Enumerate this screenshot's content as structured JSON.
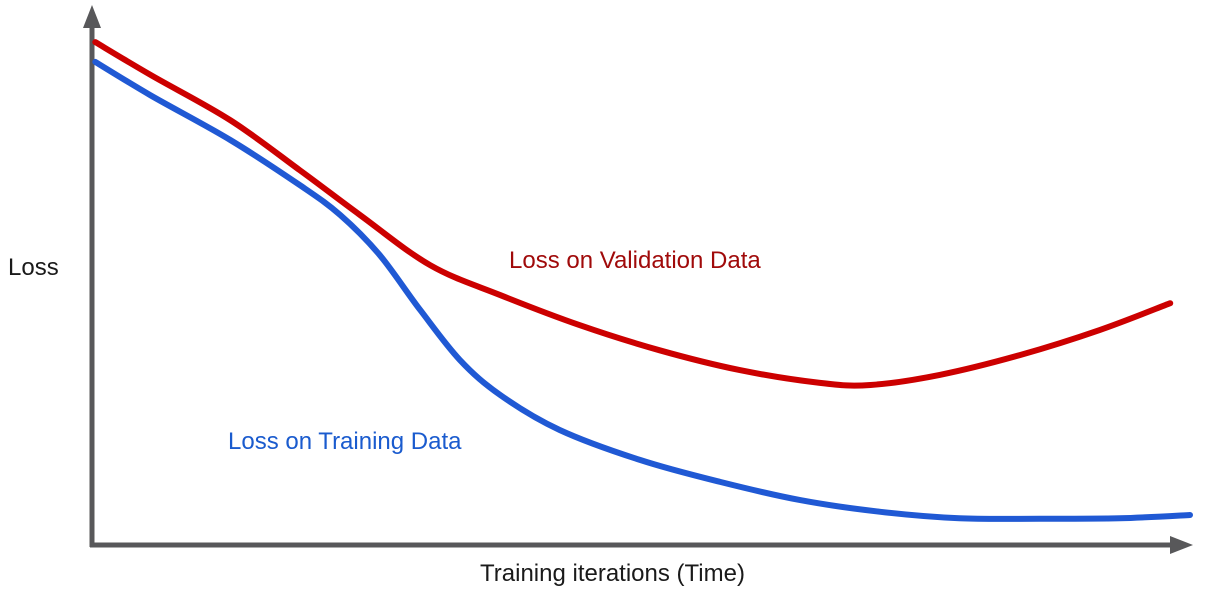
{
  "chart_data": {
    "type": "line",
    "title": "",
    "xlabel": "Training iterations (Time)",
    "ylabel": "Loss",
    "x_range": [
      0,
      100
    ],
    "y_range": [
      0,
      100
    ],
    "grid": false,
    "tick_labels": "none",
    "axes_arrows": true,
    "legend_position": "inline-annotations",
    "axis_color": "#58585a",
    "text_color": "#1a1a1a",
    "series": [
      {
        "name": "Loss on Validation Data",
        "color": "#cc0000",
        "label_color": "#a00a0a",
        "points": [
          [
            0.3,
            94.0
          ],
          [
            5.3,
            87.9
          ],
          [
            12.6,
            79.4
          ],
          [
            18.9,
            70.1
          ],
          [
            24.4,
            61.7
          ],
          [
            30.8,
            52.3
          ],
          [
            37.2,
            46.7
          ],
          [
            44.4,
            41.1
          ],
          [
            51.7,
            36.4
          ],
          [
            59.0,
            32.7
          ],
          [
            66.3,
            30.3
          ],
          [
            70.9,
            29.9
          ],
          [
            77.2,
            31.8
          ],
          [
            84.5,
            35.5
          ],
          [
            91.8,
            40.2
          ],
          [
            98.2,
            45.2
          ]
        ]
      },
      {
        "name": "Loss on Training Data",
        "color": "#2059d4",
        "label_color": "#1a5bce",
        "points": [
          [
            0.3,
            90.3
          ],
          [
            5.3,
            84.1
          ],
          [
            12.6,
            75.7
          ],
          [
            18.9,
            67.3
          ],
          [
            22.6,
            61.7
          ],
          [
            26.2,
            54.2
          ],
          [
            29.9,
            43.9
          ],
          [
            33.5,
            34.6
          ],
          [
            37.2,
            28.0
          ],
          [
            42.6,
            21.5
          ],
          [
            49.9,
            15.9
          ],
          [
            57.2,
            11.8
          ],
          [
            64.5,
            8.4
          ],
          [
            71.8,
            6.2
          ],
          [
            79.0,
            5.0
          ],
          [
            86.3,
            4.9
          ],
          [
            93.6,
            5.0
          ],
          [
            100.0,
            5.6
          ]
        ]
      }
    ]
  }
}
